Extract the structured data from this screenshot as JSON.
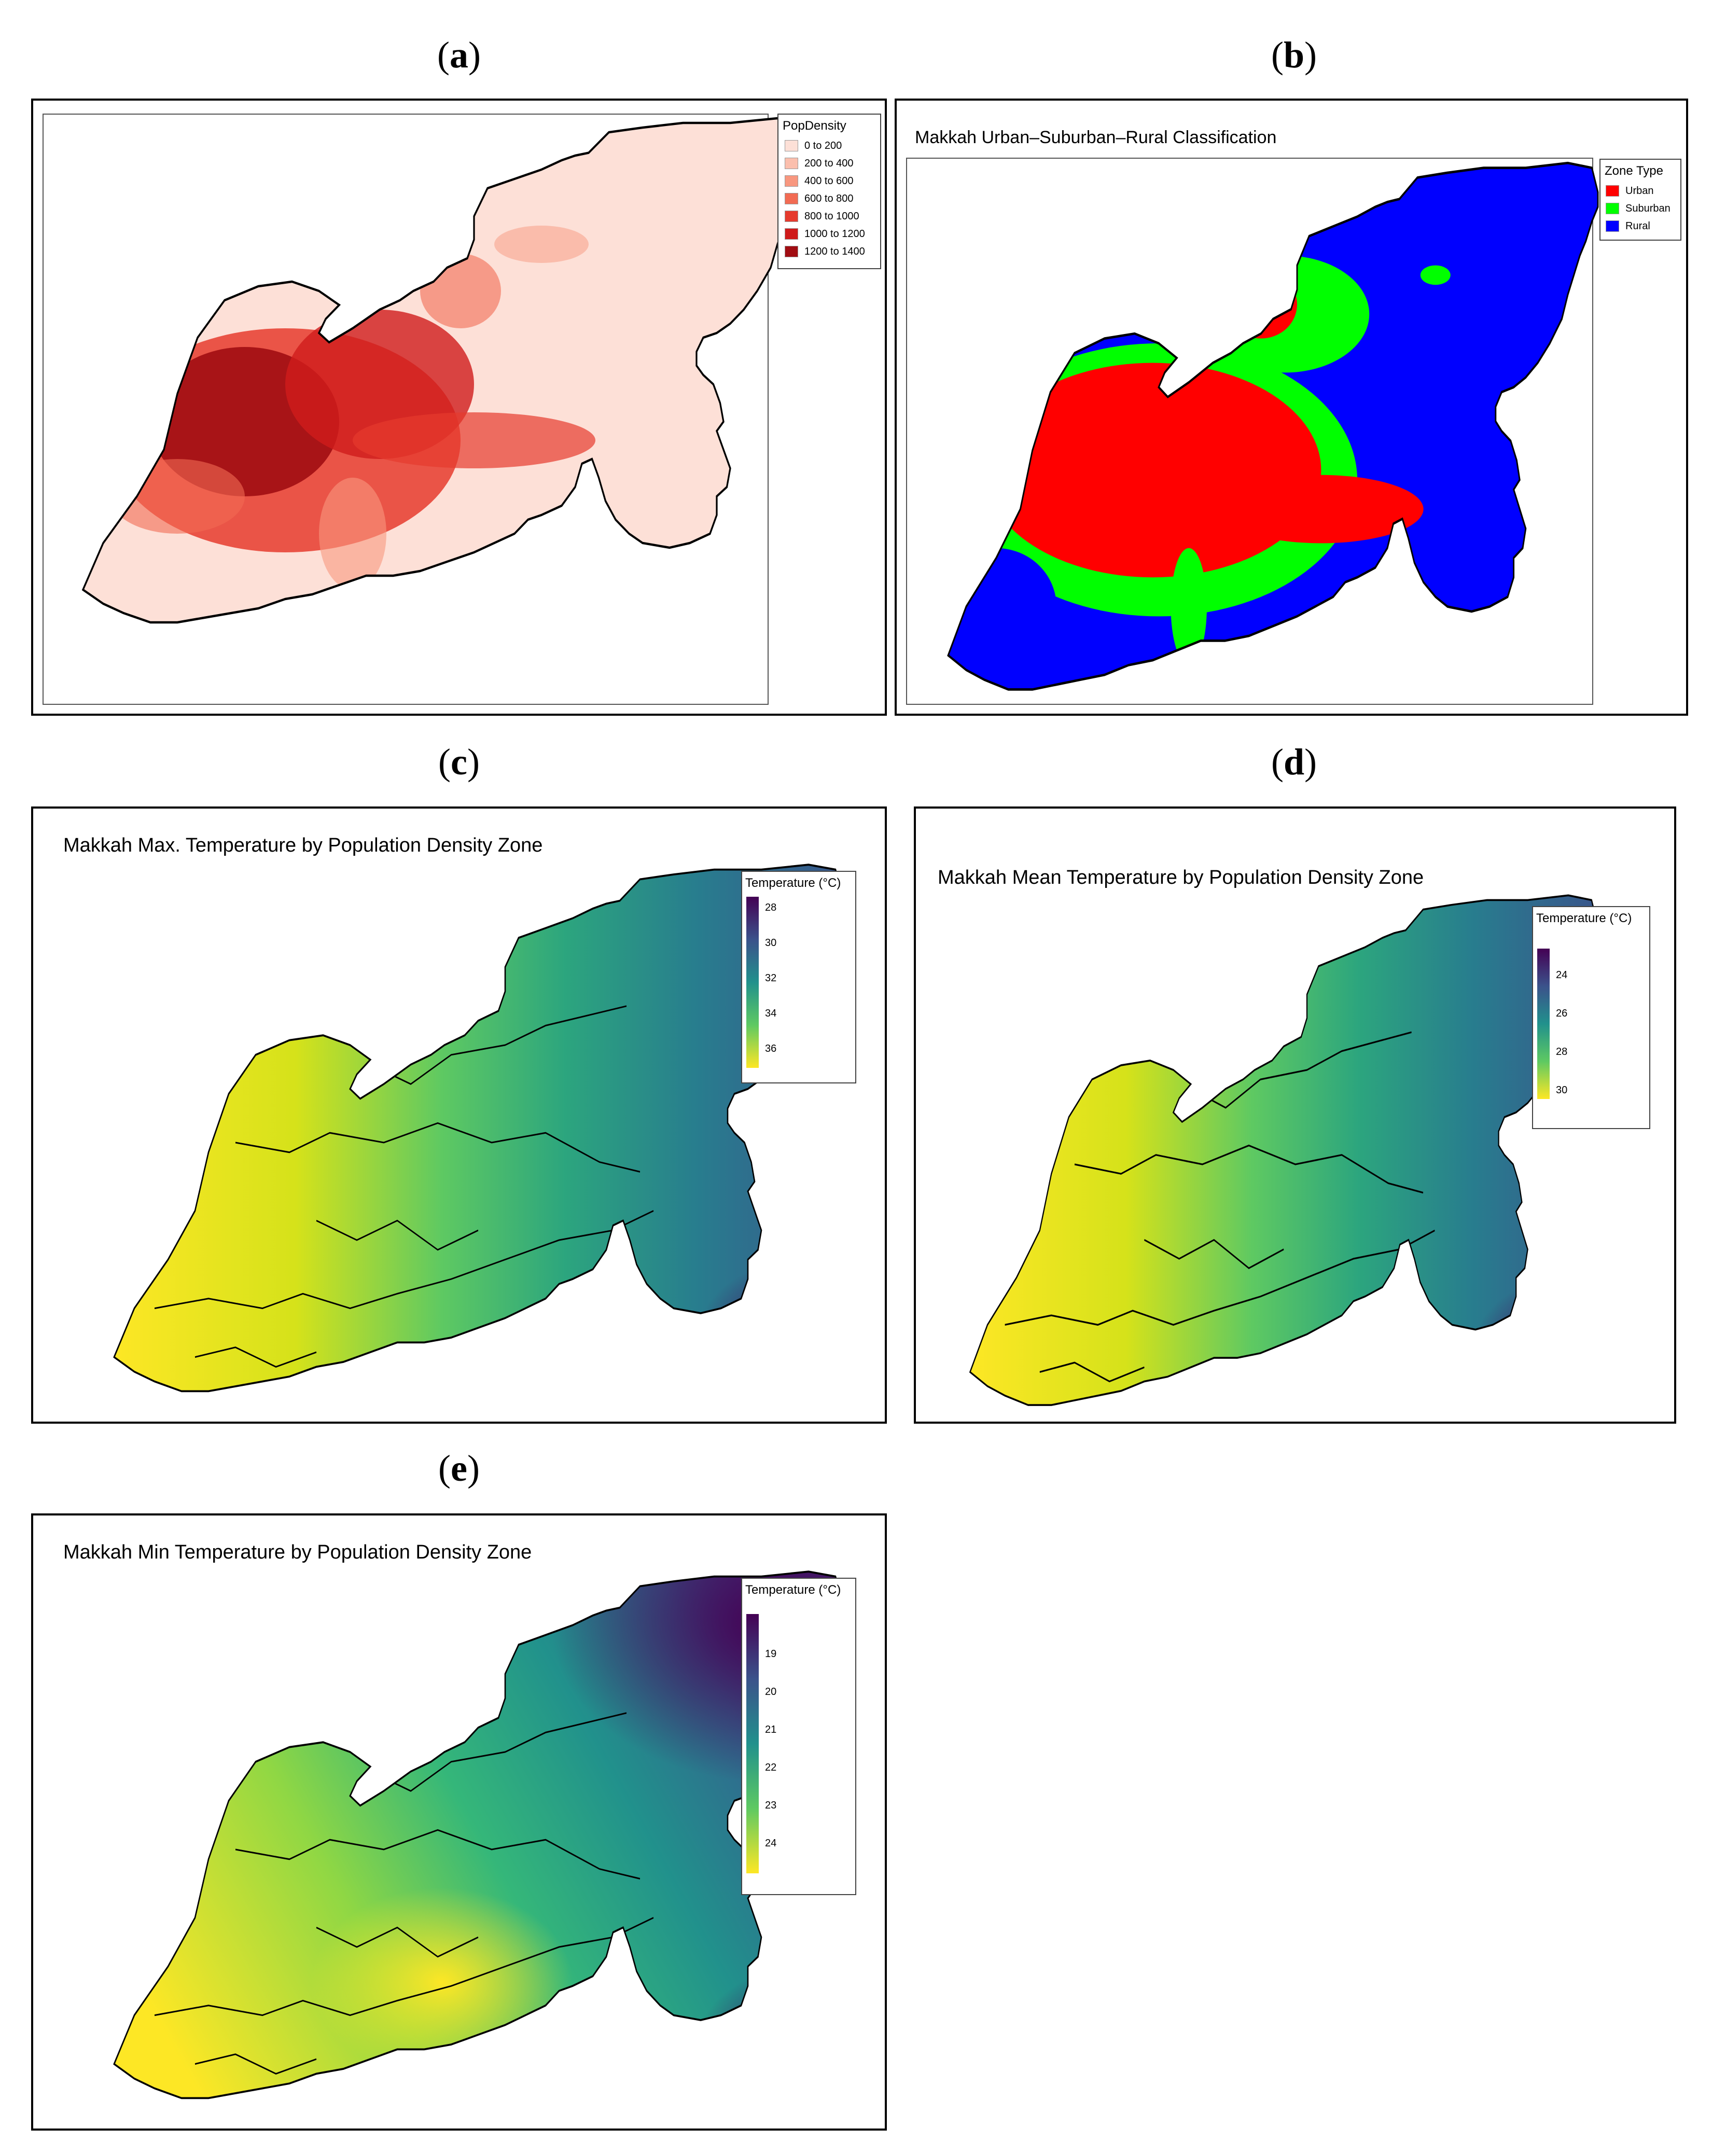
{
  "panels": {
    "a": {
      "letter": "a"
    },
    "b": {
      "letter": "b",
      "title": "Makkah Urban–Suburban–Rural Classification"
    },
    "c": {
      "letter": "c",
      "title": "Makkah Max. Temperature by Population Density Zone"
    },
    "d": {
      "letter": "d",
      "title": "Makkah Mean Temperature by Population Density Zone"
    },
    "e": {
      "letter": "e",
      "title": "Makkah Min Temperature by Population Density Zone"
    }
  },
  "legends": {
    "popdensity": {
      "title": "PopDensity",
      "items": [
        {
          "label": "0 to 200",
          "color": "#fde0d7"
        },
        {
          "label": "200 to 400",
          "color": "#fbbfad"
        },
        {
          "label": "400 to 600",
          "color": "#f8977f"
        },
        {
          "label": "600 to 800",
          "color": "#f26b53"
        },
        {
          "label": "800 to 1000",
          "color": "#e63b2e"
        },
        {
          "label": "1000 to 1200",
          "color": "#cf1b1b"
        },
        {
          "label": "1200 to 1400",
          "color": "#a10d12"
        }
      ]
    },
    "zone": {
      "title": "Zone Type",
      "items": [
        {
          "label": "Urban",
          "color": "#ff0000"
        },
        {
          "label": "Suburban",
          "color": "#00ff00"
        },
        {
          "label": "Rural",
          "color": "#0000ff"
        }
      ]
    },
    "max_temp": {
      "title": "Temperature (°C)",
      "ticks": [
        "28",
        "30",
        "32",
        "34",
        "36"
      ]
    },
    "mean_temp": {
      "title": "Temperature (°C)",
      "ticks": [
        "24",
        "26",
        "28",
        "30"
      ]
    },
    "min_temp": {
      "title": "Temperature (°C)",
      "ticks": [
        "19",
        "20",
        "21",
        "22",
        "23",
        "24"
      ]
    }
  },
  "colors": {
    "viridis_low": "#fde725",
    "viridis_mid": "#21a585",
    "viridis_high": "#440154",
    "urban": "#ff0000",
    "suburban": "#00ff00",
    "rural": "#0000ff"
  }
}
